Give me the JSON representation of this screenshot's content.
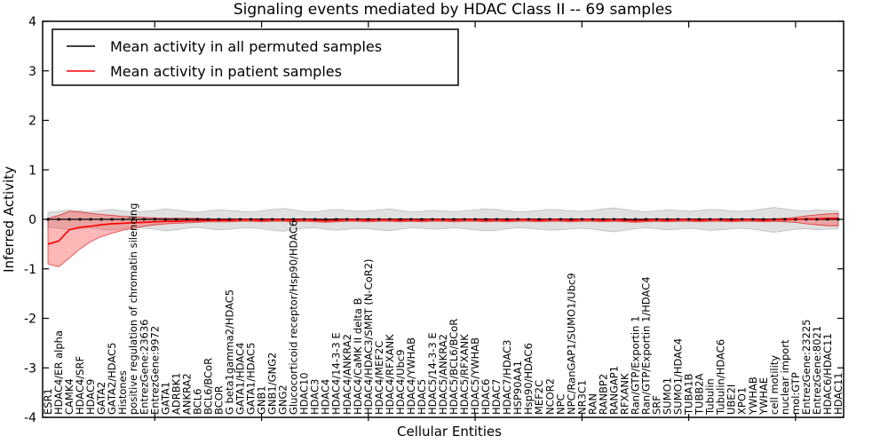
{
  "title": "Signaling events mediated by HDAC Class II -- 69 samples",
  "axes": {
    "xlabel": "Cellular Entities",
    "ylabel": "Inferred Activity",
    "yticks": [
      4,
      3,
      2,
      1,
      0,
      -1,
      -2,
      -3,
      -4
    ],
    "ylim": [
      -4,
      4
    ]
  },
  "legend": {
    "position": "upper left",
    "items": [
      {
        "label": "Mean activity in all permuted samples",
        "color": "#000000"
      },
      {
        "label": "Mean activity in patient samples",
        "color": "#ff0000"
      }
    ]
  },
  "colors": {
    "permuted_line": "#000000",
    "permuted_band_fill": "#e0e0e0",
    "permuted_band_edge": "#bdbdbd",
    "patient_line": "#ff0000",
    "patient_band_fill": "rgba(255,40,40,0.33)",
    "patient_band_edge": "rgba(215,0,0,0.65)",
    "frame": "#000000"
  },
  "chart_data": {
    "type": "line",
    "title": "Signaling events mediated by HDAC Class II -- 69 samples",
    "xlabel": "Cellular Entities",
    "ylabel": "Inferred Activity",
    "ylim": [
      -4,
      4
    ],
    "grid": false,
    "legend_position": "upper left",
    "x_tick_interval": 10,
    "categories": [
      "ESR1",
      "HDAC4/ER alpha",
      "CAMK4",
      "HDAC4/SRF",
      "HDAC9",
      "GATA2",
      "GATA2/HDAC5",
      "Histones",
      "positive regulation of chromatin silencing",
      "EntrezGene:23636",
      "EntrezGene:9972",
      "GATA1",
      "ADRBK1",
      "ANKRA2",
      "BCL6",
      "BCL6/BCoR",
      "BCOR",
      "G beta1gamma2/HDAC5",
      "GATA1/HDAC4",
      "GATA1/HDAC5",
      "GNB1",
      "GNB1/GNG2",
      "GNG2",
      "Glucocorticoid receptor/Hsp90/HDAC6",
      "HDAC10",
      "HDAC3",
      "HDAC4",
      "HDAC4/14-3-3 E",
      "HDAC4/ANKRA2",
      "HDAC4/CaMK II delta B",
      "HDAC4/HDAC3/SMRT (N-CoR2)",
      "HDAC4/MEF2C",
      "HDAC4/RFXANK",
      "HDAC4/Ubc9",
      "HDAC4/YWHAB",
      "HDAC5",
      "HDAC5/14-3-3 E",
      "HDAC5/ANKRA2",
      "HDAC5/BCL6/BCoR",
      "HDAC5/RFXANK",
      "HDAC5/YWHAB",
      "HDAC6",
      "HDAC7",
      "HDAC7/HDAC3",
      "HSP90AA1",
      "Hsp90/HDAC6",
      "MEF2C",
      "NCOR2",
      "NPC",
      "NPC/RanGAP1/SUMO1/Ubc9",
      "NR3C1",
      "RAN",
      "RANBP2",
      "RANGAP1",
      "RFXANK",
      "Ran/GTP/Exportin 1",
      "Ran/GTP/Exportin 1/HDAC4",
      "SRF",
      "SUMO1",
      "SUMO1/HDAC4",
      "TUBA1B",
      "TUBB2A",
      "Tubulin",
      "Tubulin/HDAC6",
      "UBE2I",
      "XPO1",
      "YWHAB",
      "YWHAE",
      "cell motility",
      "nuclear import",
      "mol:GTP",
      "EntrezGene:23225",
      "EntrezGene:8021",
      "HDAC6/HDAC11",
      "HDAC11"
    ],
    "series": [
      {
        "name": "Mean activity in all permuted samples",
        "color": "#000000",
        "marker": "dot",
        "values": [
          0,
          0,
          0,
          0,
          0,
          0,
          0,
          0,
          0,
          0,
          0,
          0,
          0,
          0,
          0,
          0,
          0,
          0,
          0,
          0,
          0,
          0,
          0,
          0,
          0,
          0,
          0,
          0,
          0,
          0,
          0,
          0,
          0,
          0,
          0,
          0,
          0,
          0,
          0,
          0,
          0,
          0,
          0,
          0,
          0,
          0,
          0,
          0,
          0,
          0,
          0,
          0,
          0,
          0,
          0,
          0,
          0,
          0,
          0,
          0,
          0,
          0,
          0,
          0,
          0,
          0,
          0,
          0,
          0,
          0,
          0,
          0,
          0,
          0,
          0
        ],
        "band_upper": [
          0.14,
          0.16,
          0.19,
          0.17,
          0.15,
          0.18,
          0.2,
          0.17,
          0.15,
          0.16,
          0.18,
          0.21,
          0.19,
          0.16,
          0.14,
          0.17,
          0.19,
          0.18,
          0.16,
          0.15,
          0.17,
          0.2,
          0.22,
          0.19,
          0.16,
          0.15,
          0.18,
          0.2,
          0.18,
          0.16,
          0.17,
          0.19,
          0.21,
          0.18,
          0.15,
          0.16,
          0.18,
          0.17,
          0.15,
          0.17,
          0.19,
          0.21,
          0.2,
          0.17,
          0.15,
          0.16,
          0.18,
          0.2,
          0.19,
          0.17,
          0.16,
          0.18,
          0.21,
          0.23,
          0.2,
          0.17,
          0.15,
          0.17,
          0.19,
          0.18,
          0.16,
          0.18,
          0.2,
          0.19,
          0.17,
          0.16,
          0.18,
          0.21,
          0.24,
          0.21,
          0.18,
          0.17,
          0.19,
          0.18,
          0.17
        ],
        "band_lower": [
          -0.16,
          -0.18,
          -0.21,
          -0.19,
          -0.17,
          -0.2,
          -0.22,
          -0.19,
          -0.17,
          -0.18,
          -0.2,
          -0.23,
          -0.21,
          -0.18,
          -0.16,
          -0.19,
          -0.21,
          -0.2,
          -0.18,
          -0.17,
          -0.19,
          -0.22,
          -0.24,
          -0.21,
          -0.18,
          -0.17,
          -0.2,
          -0.22,
          -0.2,
          -0.18,
          -0.19,
          -0.21,
          -0.23,
          -0.2,
          -0.17,
          -0.18,
          -0.2,
          -0.19,
          -0.17,
          -0.19,
          -0.21,
          -0.23,
          -0.22,
          -0.19,
          -0.17,
          -0.18,
          -0.2,
          -0.22,
          -0.21,
          -0.19,
          -0.18,
          -0.2,
          -0.23,
          -0.25,
          -0.22,
          -0.19,
          -0.17,
          -0.19,
          -0.21,
          -0.2,
          -0.18,
          -0.2,
          -0.22,
          -0.21,
          -0.19,
          -0.18,
          -0.2,
          -0.23,
          -0.26,
          -0.23,
          -0.2,
          -0.19,
          -0.21,
          -0.2,
          -0.19
        ]
      },
      {
        "name": "Mean activity in patient samples",
        "color": "#ff0000",
        "marker": "none",
        "values": [
          -0.5,
          -0.44,
          -0.21,
          -0.16,
          -0.14,
          -0.11,
          -0.09,
          -0.08,
          -0.07,
          -0.06,
          -0.05,
          -0.04,
          -0.04,
          -0.03,
          -0.03,
          -0.02,
          -0.02,
          -0.02,
          -0.01,
          -0.01,
          -0.02,
          -0.01,
          -0.01,
          -0.02,
          -0.01,
          -0.02,
          -0.03,
          -0.02,
          -0.01,
          -0.01,
          -0.02,
          -0.01,
          -0.01,
          -0.02,
          -0.01,
          -0.02,
          -0.01,
          -0.01,
          -0.02,
          -0.01,
          -0.01,
          -0.02,
          -0.01,
          -0.02,
          -0.01,
          -0.01,
          -0.02,
          -0.01,
          -0.01,
          -0.02,
          -0.01,
          -0.01,
          -0.02,
          -0.01,
          -0.02,
          -0.03,
          -0.02,
          -0.01,
          -0.02,
          -0.01,
          -0.01,
          -0.02,
          -0.01,
          -0.01,
          -0.02,
          -0.01,
          -0.01,
          -0.02,
          -0.01,
          -0.01,
          0.0,
          0.01,
          0.01,
          0.02,
          0.02
        ],
        "band_upper": [
          0.02,
          0.08,
          0.16,
          0.15,
          0.12,
          0.1,
          0.08,
          0.06,
          0.05,
          0.04,
          0.03,
          0.02,
          0.02,
          0.02,
          0.02,
          0.01,
          0.01,
          0.01,
          0.01,
          0.01,
          0.01,
          0.01,
          0.01,
          0.01,
          0.01,
          0.01,
          0.0,
          0.01,
          0.01,
          0.01,
          0.01,
          0.01,
          0.01,
          0.01,
          0.01,
          0.01,
          0.01,
          0.01,
          0.01,
          0.01,
          0.01,
          0.01,
          0.01,
          0.01,
          0.01,
          0.01,
          0.01,
          0.01,
          0.01,
          0.01,
          0.01,
          0.01,
          0.01,
          0.01,
          0.01,
          0.0,
          0.01,
          0.01,
          0.01,
          0.01,
          0.01,
          0.01,
          0.01,
          0.01,
          0.01,
          0.01,
          0.01,
          0.01,
          0.01,
          0.02,
          0.04,
          0.07,
          0.09,
          0.11,
          0.12
        ],
        "band_lower": [
          -0.9,
          -0.96,
          -0.78,
          -0.6,
          -0.45,
          -0.35,
          -0.28,
          -0.22,
          -0.18,
          -0.14,
          -0.11,
          -0.09,
          -0.08,
          -0.07,
          -0.06,
          -0.05,
          -0.05,
          -0.05,
          -0.04,
          -0.04,
          -0.05,
          -0.04,
          -0.04,
          -0.05,
          -0.04,
          -0.05,
          -0.06,
          -0.05,
          -0.04,
          -0.04,
          -0.05,
          -0.04,
          -0.04,
          -0.05,
          -0.04,
          -0.05,
          -0.04,
          -0.04,
          -0.05,
          -0.04,
          -0.04,
          -0.05,
          -0.04,
          -0.05,
          -0.04,
          -0.04,
          -0.05,
          -0.04,
          -0.04,
          -0.05,
          -0.04,
          -0.04,
          -0.05,
          -0.04,
          -0.05,
          -0.06,
          -0.05,
          -0.04,
          -0.05,
          -0.04,
          -0.04,
          -0.05,
          -0.04,
          -0.04,
          -0.05,
          -0.04,
          -0.04,
          -0.05,
          -0.04,
          -0.05,
          -0.06,
          -0.09,
          -0.11,
          -0.13,
          -0.13
        ]
      }
    ]
  }
}
